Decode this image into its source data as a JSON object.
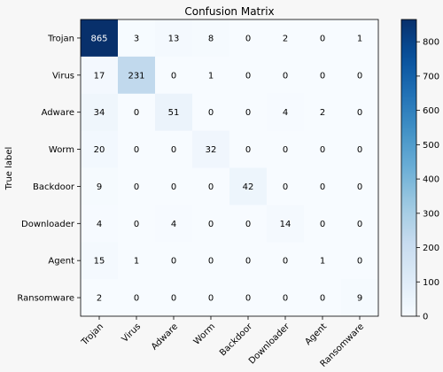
{
  "chart_data": {
    "type": "heatmap",
    "title": "Confusion Matrix",
    "ylabel": "True label",
    "xlabel": "",
    "x_categories": [
      "Trojan",
      "Virus",
      "Adware",
      "Worm",
      "Backdoor",
      "Downloader",
      "Agent",
      "Ransomware"
    ],
    "y_categories": [
      "Trojan",
      "Virus",
      "Adware",
      "Worm",
      "Backdoor",
      "Downloader",
      "Agent",
      "Ransomware"
    ],
    "matrix": [
      [
        865,
        3,
        13,
        8,
        0,
        2,
        0,
        1
      ],
      [
        17,
        231,
        0,
        1,
        0,
        0,
        0,
        0
      ],
      [
        34,
        0,
        51,
        0,
        0,
        4,
        2,
        0
      ],
      [
        20,
        0,
        0,
        32,
        0,
        0,
        0,
        0
      ],
      [
        9,
        0,
        0,
        0,
        42,
        0,
        0,
        0
      ],
      [
        4,
        0,
        4,
        0,
        0,
        14,
        0,
        0
      ],
      [
        15,
        1,
        0,
        0,
        0,
        0,
        1,
        0
      ],
      [
        2,
        0,
        0,
        0,
        0,
        0,
        0,
        9
      ]
    ],
    "colorbar": {
      "colormap": "Blues",
      "min": 0,
      "max": 865,
      "ticks": [
        0,
        100,
        200,
        300,
        400,
        500,
        600,
        700,
        800
      ]
    },
    "grid": false,
    "x_tick_rotation_deg": 45
  }
}
